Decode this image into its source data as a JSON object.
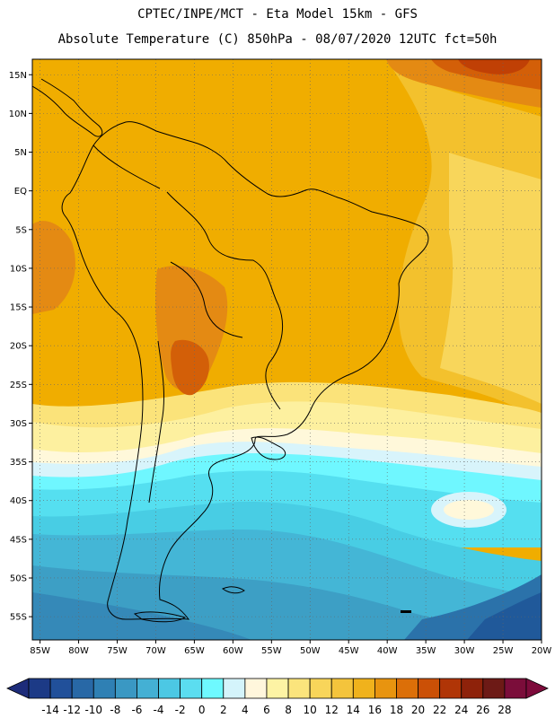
{
  "title": {
    "line1": "CPTEC/INPE/MCT -  Eta Model 15km - GFS",
    "line2": "Absolute Temperature (C) 850hPa - 08/07/2020 12UTC fct=50h"
  },
  "map": {
    "lon_range": [
      -86,
      -20
    ],
    "lat_range": [
      -58,
      17
    ],
    "lat_ticks": [
      {
        "value": 15,
        "label": "15N"
      },
      {
        "value": 10,
        "label": "10N"
      },
      {
        "value": 5,
        "label": "5N"
      },
      {
        "value": 0,
        "label": "EQ"
      },
      {
        "value": -5,
        "label": "5S"
      },
      {
        "value": -10,
        "label": "10S"
      },
      {
        "value": -15,
        "label": "15S"
      },
      {
        "value": -20,
        "label": "20S"
      },
      {
        "value": -25,
        "label": "25S"
      },
      {
        "value": -30,
        "label": "30S"
      },
      {
        "value": -35,
        "label": "35S"
      },
      {
        "value": -40,
        "label": "40S"
      },
      {
        "value": -45,
        "label": "45S"
      },
      {
        "value": -50,
        "label": "50S"
      },
      {
        "value": -55,
        "label": "55S"
      }
    ],
    "lon_ticks": [
      {
        "value": -85,
        "label": "85W"
      },
      {
        "value": -80,
        "label": "80W"
      },
      {
        "value": -75,
        "label": "75W"
      },
      {
        "value": -70,
        "label": "70W"
      },
      {
        "value": -65,
        "label": "65W"
      },
      {
        "value": -60,
        "label": "60W"
      },
      {
        "value": -55,
        "label": "55W"
      },
      {
        "value": -50,
        "label": "50W"
      },
      {
        "value": -45,
        "label": "45W"
      },
      {
        "value": -40,
        "label": "40W"
      },
      {
        "value": -35,
        "label": "35W"
      },
      {
        "value": -30,
        "label": "30W"
      },
      {
        "value": -25,
        "label": "25W"
      },
      {
        "value": -20,
        "label": "20W"
      }
    ],
    "colors": {
      "t18": "#f0ad00",
      "t16": "#f3c12d",
      "t14": "#f8d65b",
      "t12": "#fbe37a",
      "t10": "#fdf09f",
      "t8": "#fff8da",
      "t6": "#d8f4fb",
      "t4": "#6ff7ff",
      "t2": "#55dff0",
      "t0": "#48cde4",
      "tm2": "#44b6d6",
      "tm4": "#3d9fc5",
      "tm6": "#3589b8",
      "tm8": "#2b72aa",
      "tm10": "#20599a",
      "tm12": "#173f87",
      "t20": "#e48a13",
      "t22": "#d35f08",
      "t24": "#c04005",
      "t26": "#a02a06",
      "t28": "#7c1a0b",
      "coast": "#000000",
      "grid": "#666666"
    }
  },
  "colorbar": {
    "labels": [
      "-14",
      "-12",
      "-10",
      "-8",
      "-6",
      "-4",
      "-2",
      "0",
      "2",
      "4",
      "6",
      "8",
      "10",
      "12",
      "14",
      "16",
      "18",
      "20",
      "22",
      "24",
      "26",
      "28"
    ],
    "colors": [
      "#1c3a86",
      "#21509a",
      "#2868a6",
      "#2f80b4",
      "#3a98c3",
      "#44b0d4",
      "#4cc8e4",
      "#5bddf0",
      "#6ef9ff",
      "#d4f4fb",
      "#fff6dc",
      "#fdf3a4",
      "#fbe47c",
      "#f8d55a",
      "#f4c43c",
      "#f0b21c",
      "#e8940f",
      "#dc6f08",
      "#cb5006",
      "#b03506",
      "#8e220a",
      "#6d1a16",
      "#7b0d3a"
    ],
    "underflow_color": "#1d2c7a",
    "overflow_color": "#7d0b3b"
  }
}
